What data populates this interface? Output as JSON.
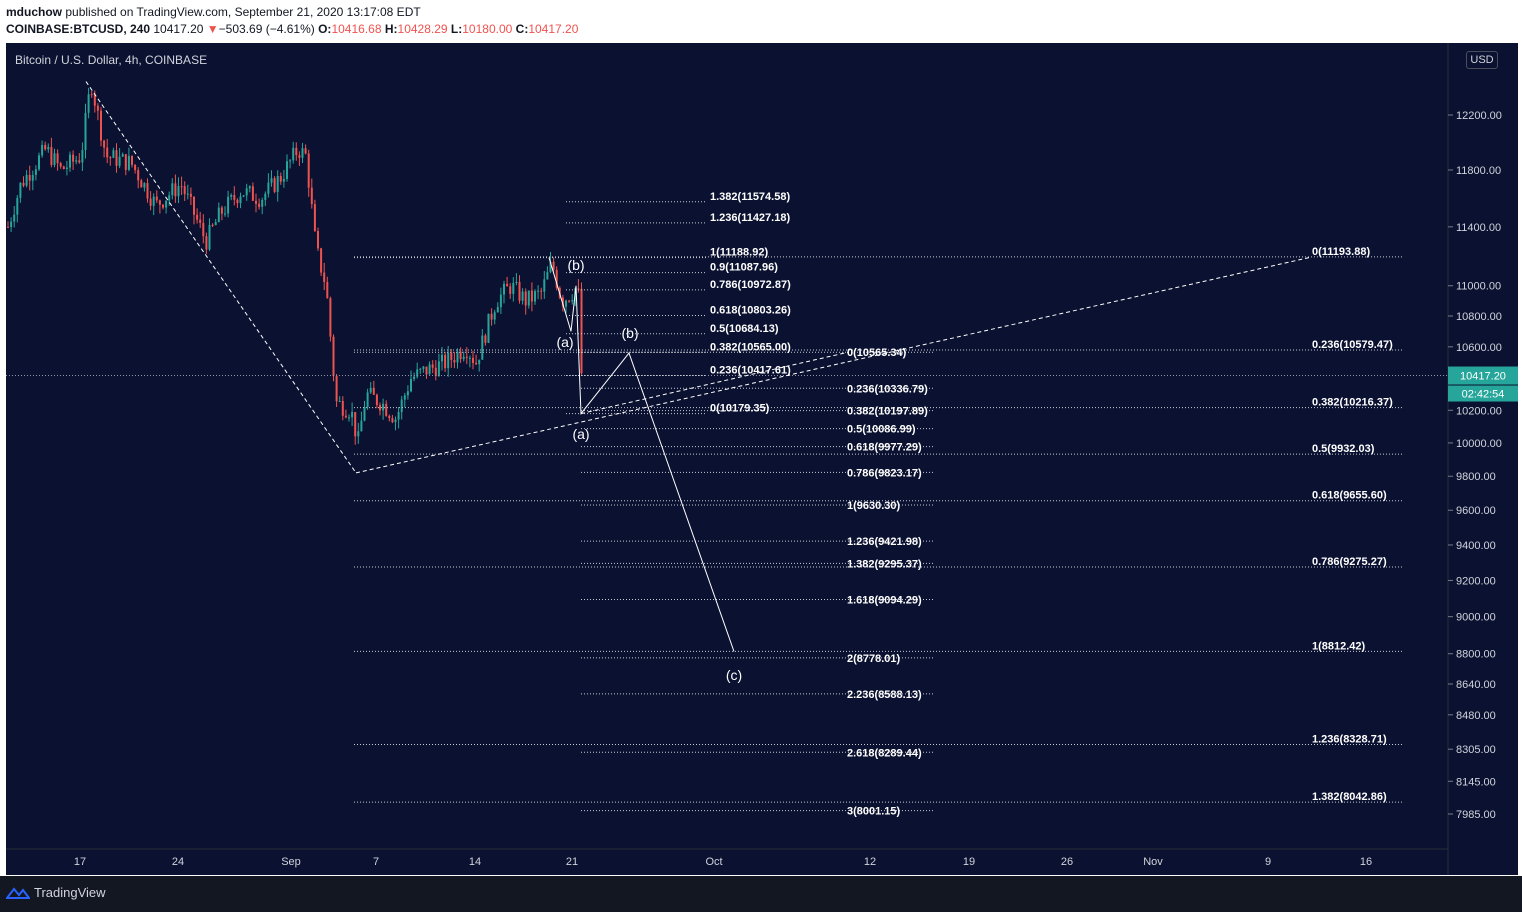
{
  "header": {
    "publisher": "mduchow",
    "published_text": "published on TradingView.com, September 21, 2020 13:17:08 EDT",
    "symbol": "COINBASE:BTCUSD, 240",
    "last_price": "10417.20",
    "change_arrow": "▼",
    "change": "−503.69 (−4.61%)",
    "open_label": "O:",
    "open": "10416.68",
    "high_label": "H:",
    "high": "10428.29",
    "low_label": "L:",
    "low": "10180.00",
    "close_label": "C:",
    "close": "10417.20"
  },
  "chart": {
    "title": "Bitcoin / U.S. Dollar, 4h, COINBASE",
    "currency_button": "USD",
    "price_label": "10417.20",
    "countdown_label": "02:42:54",
    "colors": {
      "background": "#0b1130",
      "up": "#26a69a",
      "down": "#ef5350",
      "text": "#d1d4dc",
      "price_tag": "#26a69a",
      "line": "#ffffff"
    }
  },
  "chart_data": {
    "type": "candlestick",
    "title": "Bitcoin / U.S. Dollar, 4h, COINBASE",
    "scale": "log",
    "y_ticks": [
      "12200.00",
      "11800.00",
      "11400.00",
      "11000.00",
      "10800.00",
      "10600.00",
      "10400.00",
      "10200.00",
      "10000.00",
      "9800.00",
      "9600.00",
      "9400.00",
      "9200.00",
      "9000.00",
      "8800.00",
      "8640.00",
      "8480.00",
      "8305.00",
      "8145.00",
      "7985.00"
    ],
    "x_ticks": [
      "17",
      "24",
      "Sep",
      "7",
      "14",
      "21",
      "Oct",
      "12",
      "19",
      "26",
      "Nov",
      "9",
      "16"
    ],
    "current_price": 10417.2,
    "fib_levels": [
      {
        "label": "1.382(11574.58)",
        "value": 11574.58
      },
      {
        "label": "1.236(11427.18)",
        "value": 11427.18
      },
      {
        "label": "1(11188.92)",
        "value": 11188.92
      },
      {
        "label": "0.9(11087.96)",
        "value": 11087.96
      },
      {
        "label": "0.786(10972.87)",
        "value": 10972.87
      },
      {
        "label": "0.618(10803.26)",
        "value": 10803.26
      },
      {
        "label": "0.5(10684.13)",
        "value": 10684.13
      },
      {
        "label": "0.382(10565.00)",
        "value": 10565.0
      },
      {
        "label": "0.236(10417.61)",
        "value": 10417.61
      },
      {
        "label": "0(10179.35)",
        "value": 10179.35
      },
      {
        "label": "0(10565.34)",
        "value": 10565.34
      },
      {
        "label": "0.236(10336.79)",
        "value": 10336.79
      },
      {
        "label": "0.382(10197.89)",
        "value": 10197.89
      },
      {
        "label": "0.5(10086.99)",
        "value": 10086.99
      },
      {
        "label": "0.618(9977.29)",
        "value": 9977.29
      },
      {
        "label": "0.786(9823.17)",
        "value": 9823.17
      },
      {
        "label": "1(9630.30)",
        "value": 9630.3
      },
      {
        "label": "1.236(9421.98)",
        "value": 9421.98
      },
      {
        "label": "1.382(9295.37)",
        "value": 9295.37
      },
      {
        "label": "1.618(9094.29)",
        "value": 9094.29
      },
      {
        "label": "2(8778.01)",
        "value": 8778.01
      },
      {
        "label": "2.236(8588.13)",
        "value": 8588.13
      },
      {
        "label": "2.618(8289.44)",
        "value": 8289.44
      },
      {
        "label": "3(8001.15)",
        "value": 8001.15
      },
      {
        "label": "0(11193.88)",
        "value": 11193.88
      },
      {
        "label": "0.236(10579.47)",
        "value": 10579.47
      },
      {
        "label": "0.382(10216.37)",
        "value": 10216.37
      },
      {
        "label": "0.5(9932.03)",
        "value": 9932.03
      },
      {
        "label": "0.618(9655.60)",
        "value": 9655.6
      },
      {
        "label": "0.786(9275.27)",
        "value": 9275.27
      },
      {
        "label": "1(8812.42)",
        "value": 8812.42
      },
      {
        "label": "1.236(8328.71)",
        "value": 8328.71
      },
      {
        "label": "1.382(8042.86)",
        "value": 8042.86
      }
    ],
    "wave_labels": [
      "(b)",
      "(a)",
      "(b)",
      "(a)",
      "(c)"
    ]
  },
  "footer": {
    "brand": "TradingView"
  }
}
